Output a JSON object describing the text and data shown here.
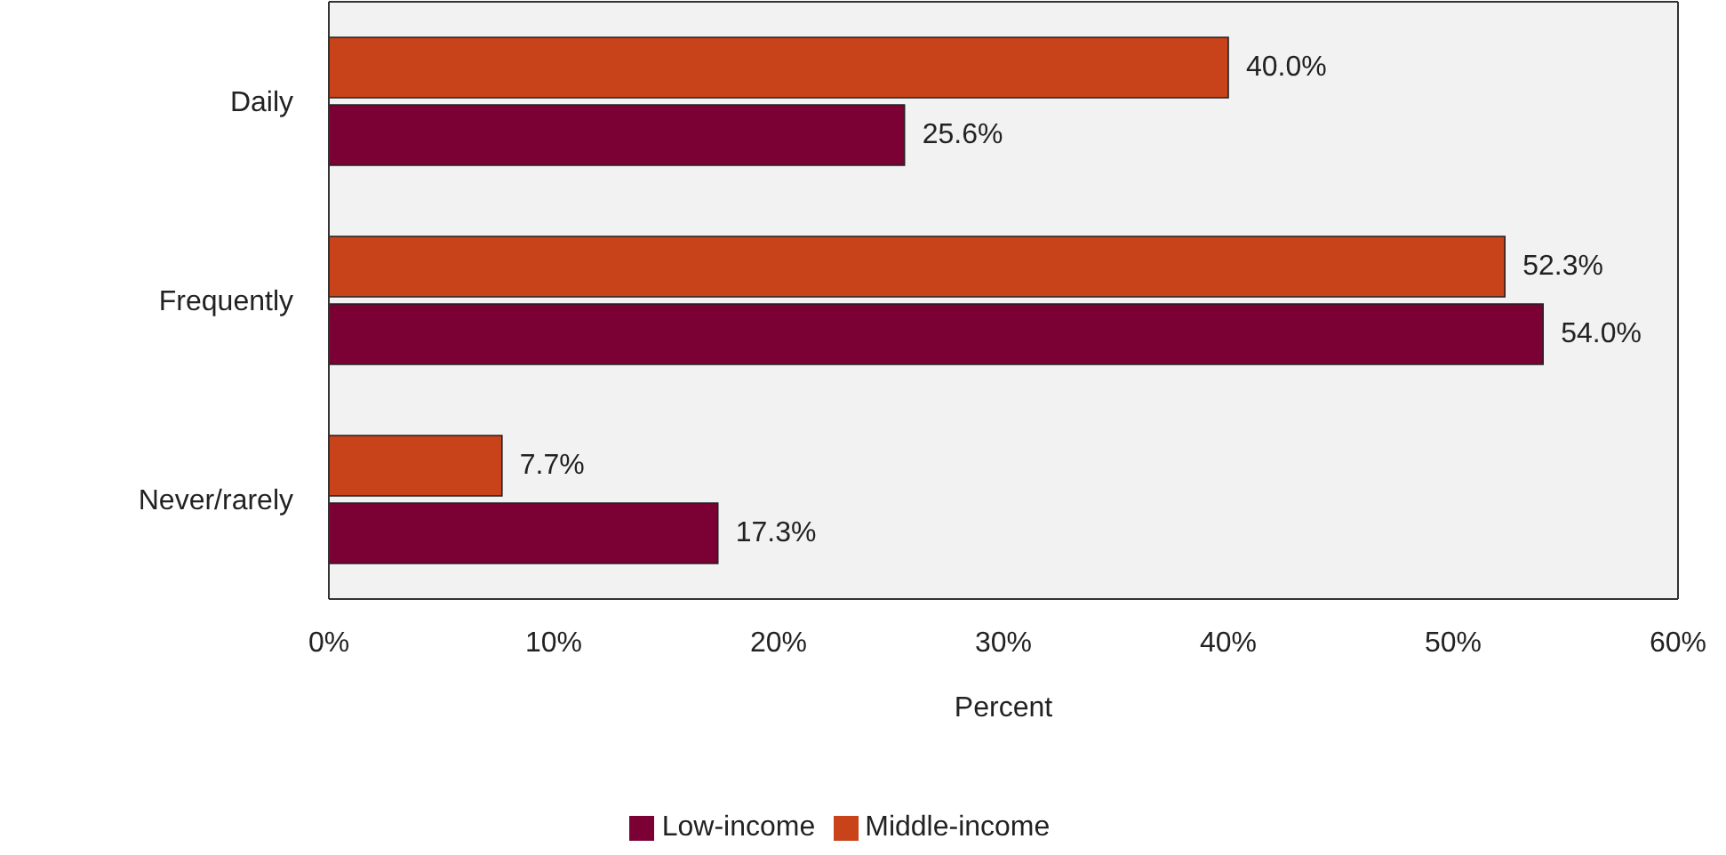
{
  "chart_data": {
    "type": "bar",
    "orientation": "horizontal",
    "xlabel": "Percent",
    "categories": [
      "Daily",
      "Frequently",
      "Never/rarely"
    ],
    "series": [
      {
        "name": "Middle-income",
        "color": "#c8431a",
        "values": [
          40.0,
          52.3,
          7.7
        ],
        "value_labels": [
          "40.0%",
          "52.3%",
          "7.7%"
        ]
      },
      {
        "name": "Low-income",
        "color": "#7b0034",
        "values": [
          25.6,
          54.0,
          17.3
        ],
        "value_labels": [
          "25.6%",
          "54.0%",
          "17.3%"
        ]
      }
    ],
    "xlim": [
      0,
      60
    ],
    "xticks": [
      {
        "value": 0,
        "label": "0%"
      },
      {
        "value": 10,
        "label": "10%"
      },
      {
        "value": 20,
        "label": "20%"
      },
      {
        "value": 30,
        "label": "30%"
      },
      {
        "value": 40,
        "label": "40%"
      },
      {
        "value": 50,
        "label": "50%"
      },
      {
        "value": 60,
        "label": "60%"
      }
    ],
    "legend": "bottom"
  }
}
